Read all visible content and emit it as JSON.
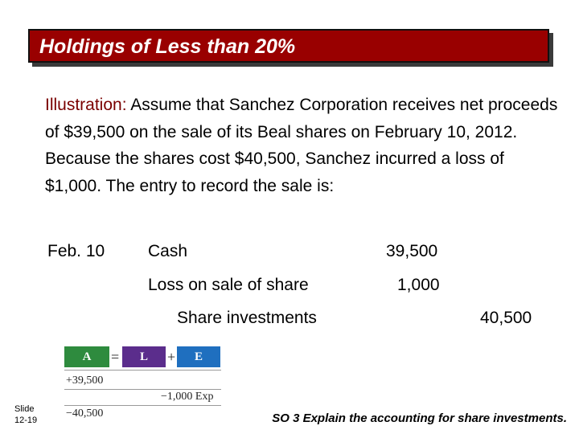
{
  "title": "Holdings of Less than 20%",
  "illustration": {
    "lead": "Illustration:",
    "body": "  Assume that Sanchez Corporation receives net proceeds of $39,500 on the sale of its Beal shares on February 10, 2012.  Because the shares cost $40,500, Sanchez incurred a loss of $1,000.  The entry to record the sale is:"
  },
  "journal_entry": {
    "date": "Feb. 10",
    "lines": [
      {
        "account": "Cash",
        "debit": "39,500",
        "credit": ""
      },
      {
        "account": "Loss on sale of share",
        "debit": "1,000",
        "credit": ""
      },
      {
        "account": "Share investments",
        "debit": "",
        "credit": "40,500"
      }
    ]
  },
  "equation": {
    "a_label": "A",
    "equals": "=",
    "l_label": "L",
    "plus": "+",
    "e_label": "E",
    "a_values": [
      "+39,500",
      "−40,500"
    ],
    "e_value": "−1,000 Exp",
    "colors": {
      "a": "#2e8b3e",
      "l": "#5b2d8c",
      "e": "#1f6fbf"
    }
  },
  "slide": {
    "label": "Slide",
    "number": "12-19"
  },
  "study_objective": "SO 3  Explain the accounting for share investments."
}
